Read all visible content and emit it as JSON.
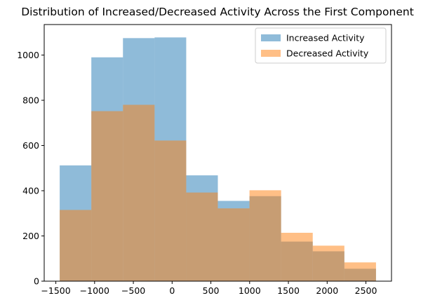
{
  "chart_data": {
    "type": "bar",
    "title": "Distribution of Increased/Decreased Activity Across the First Component",
    "xlabel": "",
    "ylabel": "",
    "xlim": [
      -1650,
      2830
    ],
    "ylim": [
      0,
      1135
    ],
    "bin_edges": [
      -1450,
      -1042,
      -634,
      -226,
      182,
      590,
      998,
      1406,
      1814,
      2222,
      2630
    ],
    "x_ticks": [
      -1500,
      -1000,
      -500,
      0,
      500,
      1000,
      1500,
      2000,
      2500
    ],
    "x_tick_labels": [
      "−1500",
      "−1000",
      "−500",
      "0",
      "500",
      "1000",
      "1500",
      "2000",
      "2500"
    ],
    "y_ticks": [
      0,
      200,
      400,
      600,
      800,
      1000
    ],
    "y_tick_labels": [
      "0",
      "200",
      "400",
      "600",
      "800",
      "1000"
    ],
    "grid": false,
    "legend_position": "top-right",
    "series": [
      {
        "name": "Increased Activity",
        "color": "#1f77b4",
        "alpha": 0.5,
        "values": [
          512,
          990,
          1075,
          1078,
          468,
          355,
          376,
          175,
          132,
          55
        ]
      },
      {
        "name": "Decreased Activity",
        "color": "#ff7f0e",
        "alpha": 0.5,
        "values": [
          315,
          752,
          780,
          622,
          392,
          322,
          402,
          214,
          157,
          83
        ]
      }
    ]
  }
}
